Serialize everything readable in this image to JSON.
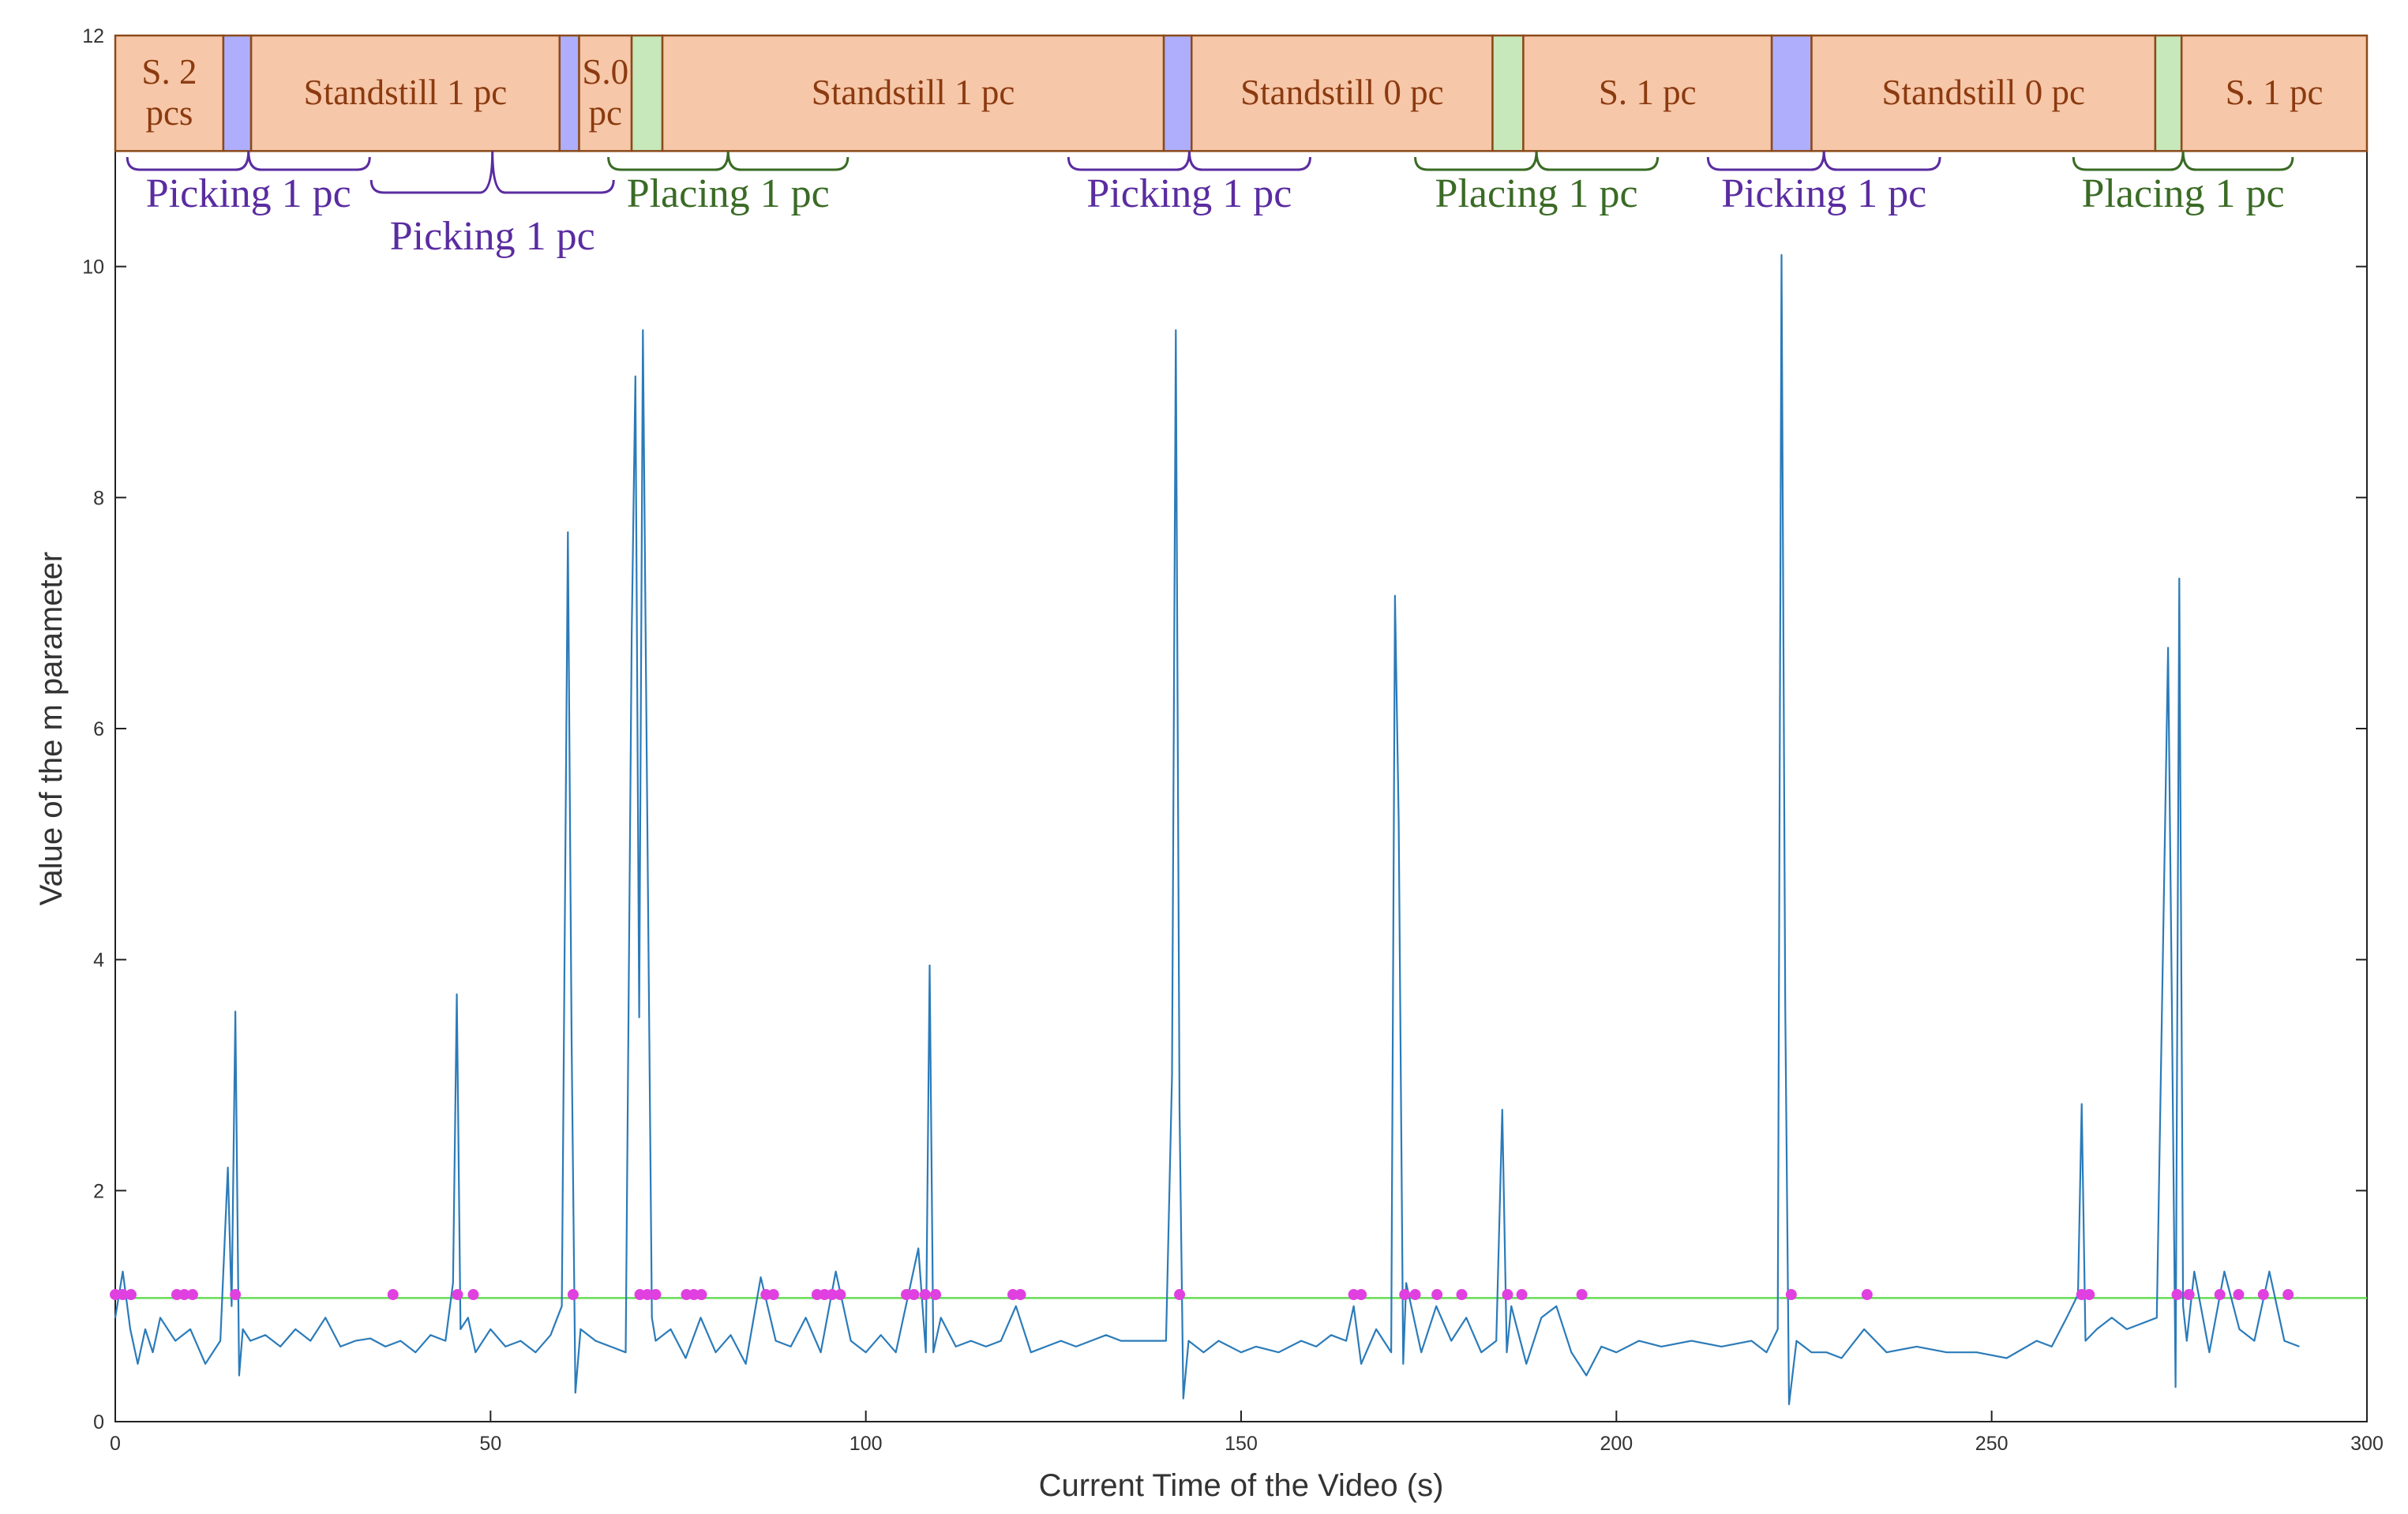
{
  "chart_data": {
    "type": "line",
    "xlabel": "Current Time of the Video (s)",
    "ylabel": "Value of the m parameter",
    "xlim": [
      0,
      300
    ],
    "ylim": [
      0,
      12
    ],
    "xticks": [
      0,
      50,
      100,
      150,
      200,
      250,
      300
    ],
    "yticks": [
      0,
      2,
      4,
      6,
      8,
      10,
      12
    ],
    "line": {
      "color": "#2b7bb9",
      "x": [
        0,
        1,
        2,
        3,
        4,
        5,
        6,
        8,
        10,
        12,
        14,
        15,
        15.5,
        16,
        16.5,
        17,
        18,
        20,
        22,
        24,
        26,
        28,
        30,
        32,
        34,
        36,
        38,
        40,
        42,
        44,
        45,
        45.5,
        46,
        47,
        48,
        50,
        52,
        54,
        56,
        58,
        59.5,
        60.3,
        60.8,
        61.3,
        62,
        64,
        66,
        68,
        68.8,
        69.3,
        69.8,
        70.3,
        70.8,
        71.5,
        72,
        74,
        76,
        78,
        80,
        82,
        84,
        86,
        88,
        90,
        92,
        94,
        96,
        98,
        100,
        102,
        104,
        106,
        107,
        108,
        108.5,
        109,
        110,
        112,
        114,
        116,
        118,
        120,
        122,
        124,
        126,
        128,
        130,
        132,
        134,
        136,
        138,
        140,
        140.8,
        141.3,
        141.8,
        142.3,
        143,
        145,
        147,
        150,
        152,
        155,
        158,
        160,
        162,
        164,
        165,
        166,
        168,
        170,
        170.5,
        171,
        171.6,
        172,
        174,
        176,
        178,
        180,
        182,
        184,
        184.8,
        185.4,
        186,
        188,
        190,
        192,
        194,
        196,
        198,
        200,
        203,
        206,
        210,
        214,
        218,
        220,
        221.5,
        222,
        222.5,
        223,
        224,
        226,
        228,
        230,
        233,
        236,
        240,
        244,
        248,
        252,
        256,
        258,
        260,
        261.5,
        262,
        262.5,
        264,
        266,
        268,
        270,
        272,
        273.5,
        274,
        274.5,
        275,
        275.5,
        276,
        277,
        279,
        281,
        283,
        285,
        287,
        289,
        291
      ],
      "values": [
        0.9,
        1.3,
        0.8,
        0.5,
        0.8,
        0.6,
        0.9,
        0.7,
        0.8,
        0.5,
        0.7,
        2.2,
        1.0,
        3.55,
        0.4,
        0.8,
        0.7,
        0.75,
        0.65,
        0.8,
        0.7,
        0.9,
        0.65,
        0.7,
        0.72,
        0.65,
        0.7,
        0.6,
        0.75,
        0.7,
        1.2,
        3.7,
        0.8,
        0.9,
        0.6,
        0.8,
        0.65,
        0.7,
        0.6,
        0.75,
        1.0,
        7.7,
        3.3,
        0.25,
        0.8,
        0.7,
        0.65,
        0.6,
        6.8,
        9.05,
        3.5,
        9.45,
        5.8,
        0.9,
        0.7,
        0.8,
        0.55,
        0.9,
        0.6,
        0.75,
        0.5,
        1.25,
        0.7,
        0.65,
        0.9,
        0.6,
        1.3,
        0.7,
        0.6,
        0.75,
        0.6,
        1.2,
        1.5,
        0.6,
        3.95,
        0.6,
        0.9,
        0.65,
        0.7,
        0.65,
        0.7,
        1.0,
        0.6,
        0.65,
        0.7,
        0.65,
        0.7,
        0.75,
        0.7,
        0.7,
        0.7,
        0.7,
        3.0,
        9.45,
        2.7,
        0.2,
        0.7,
        0.6,
        0.7,
        0.6,
        0.65,
        0.6,
        0.7,
        0.65,
        0.75,
        0.7,
        1.0,
        0.5,
        0.8,
        0.6,
        7.15,
        5.2,
        0.5,
        1.2,
        0.6,
        1.0,
        0.7,
        0.9,
        0.6,
        0.7,
        2.7,
        0.6,
        1.0,
        0.5,
        0.9,
        1.0,
        0.6,
        0.4,
        0.65,
        0.6,
        0.7,
        0.65,
        0.7,
        0.65,
        0.7,
        0.6,
        0.8,
        10.1,
        3.6,
        0.15,
        0.7,
        0.6,
        0.6,
        0.55,
        0.8,
        0.6,
        0.65,
        0.6,
        0.6,
        0.55,
        0.7,
        0.65,
        0.9,
        1.1,
        2.75,
        0.7,
        0.8,
        0.9,
        0.8,
        0.85,
        0.9,
        6.7,
        3.7,
        0.3,
        7.3,
        1.0,
        0.7,
        1.3,
        0.6,
        1.3,
        0.8,
        0.7,
        1.3,
        0.7,
        0.65
      ]
    },
    "threshold": {
      "value": 1.07,
      "color": "#66dd55"
    },
    "points": {
      "color": "#e040e0",
      "x": [
        0,
        1.0,
        2.1,
        8.2,
        9.2,
        10.3,
        16.0,
        37.0,
        45.6,
        47.7,
        61.0,
        69.9,
        70.9,
        72.0,
        76.1,
        77.1,
        78.1,
        86.7,
        87.7,
        93.5,
        94.5,
        95.5,
        96.6,
        105.4,
        106.4,
        107.9,
        109.3,
        119.6,
        120.6,
        141.8,
        165.0,
        166.0,
        171.8,
        173.2,
        176.1,
        179.4,
        185.5,
        187.4,
        195.4,
        223.3,
        233.4,
        262.0,
        263.0,
        274.7,
        276.3,
        280.4,
        282.9,
        286.2,
        289.5
      ],
      "values": [
        1.1,
        1.1,
        1.1,
        1.1,
        1.1,
        1.1,
        1.1,
        1.1,
        1.1,
        1.1,
        1.1,
        1.1,
        1.1,
        1.1,
        1.1,
        1.1,
        1.1,
        1.1,
        1.1,
        1.1,
        1.1,
        1.1,
        1.1,
        1.1,
        1.1,
        1.1,
        1.1,
        1.1,
        1.1,
        1.1,
        1.1,
        1.1,
        1.1,
        1.1,
        1.1,
        1.1,
        1.1,
        1.1,
        1.1,
        1.1,
        1.1,
        1.1,
        1.1,
        1.1,
        1.1,
        1.1,
        1.1,
        1.1,
        1.1
      ]
    },
    "phase_band": [
      11,
      12
    ],
    "phases": [
      {
        "start": 0,
        "end": 14.4,
        "label": "S. 2 pcs",
        "color": "#f6c7a8"
      },
      {
        "start": 14.4,
        "end": 18.1,
        "color": "#aeaefc"
      },
      {
        "start": 18.1,
        "end": 59.2,
        "label": "Standstill 1 pc",
        "color": "#f6c7a8"
      },
      {
        "start": 59.2,
        "end": 61.8,
        "color": "#aeaefc"
      },
      {
        "start": 61.8,
        "end": 68.8,
        "label": "S.0 pc",
        "color": "#f6c7a8"
      },
      {
        "start": 68.8,
        "end": 72.9,
        "color": "#c6e8bb"
      },
      {
        "start": 72.9,
        "end": 139.7,
        "label": "Standstill 1 pc",
        "color": "#f6c7a8"
      },
      {
        "start": 139.7,
        "end": 143.4,
        "color": "#aeaefc"
      },
      {
        "start": 143.4,
        "end": 183.5,
        "label": "Standstill 0 pc",
        "color": "#f6c7a8"
      },
      {
        "start": 183.5,
        "end": 187.6,
        "color": "#c6e8bb"
      },
      {
        "start": 187.6,
        "end": 220.7,
        "label": "S. 1 pc",
        "color": "#f6c7a8"
      },
      {
        "start": 220.7,
        "end": 226.0,
        "color": "#aeaefc"
      },
      {
        "start": 226.0,
        "end": 271.8,
        "label": "Standstill 0 pc",
        "color": "#f6c7a8"
      },
      {
        "start": 271.8,
        "end": 275.3,
        "color": "#c6e8bb"
      },
      {
        "start": 275.3,
        "end": 300,
        "label": "S. 1 pc",
        "color": "#f6c7a8"
      }
    ],
    "annotations": [
      {
        "text": "Picking 1 pc",
        "start": 1.6,
        "end": 33.9,
        "color": "#5a2ca0"
      },
      {
        "text": "Picking 1 pc",
        "start": 34.1,
        "end": 66.4,
        "color": "#5a2ca0"
      },
      {
        "text": "Placing 1 pc",
        "start": 65.7,
        "end": 97.6,
        "color": "#3a6b25"
      },
      {
        "text": "Picking 1 pc",
        "start": 127.0,
        "end": 159.2,
        "color": "#5a2ca0"
      },
      {
        "text": "Placing 1 pc",
        "start": 173.2,
        "end": 205.5,
        "color": "#3a6b25"
      },
      {
        "text": "Picking 1 pc",
        "start": 212.2,
        "end": 243.1,
        "color": "#5a2ca0"
      },
      {
        "text": "Placing 1 pc",
        "start": 260.9,
        "end": 290.1,
        "color": "#3a6b25"
      }
    ]
  }
}
